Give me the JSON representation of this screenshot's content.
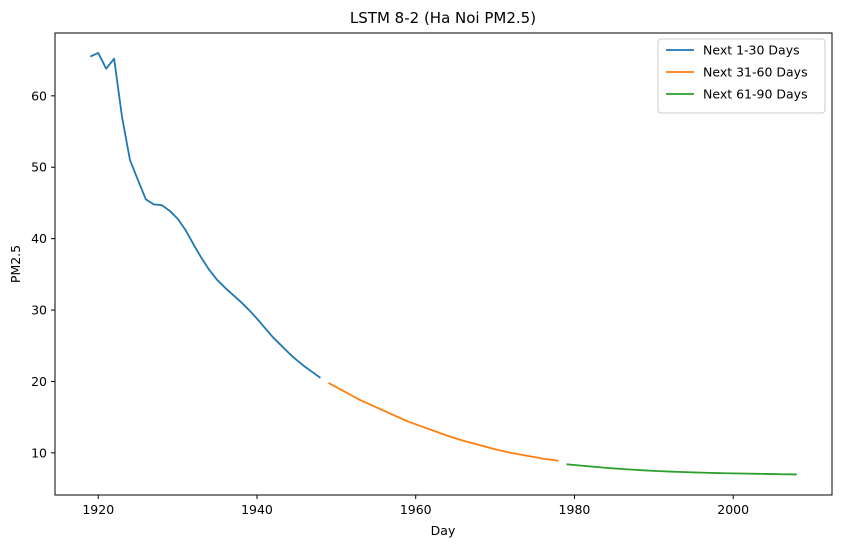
{
  "chart_data": {
    "type": "line",
    "title": "LSTM 8-2 (Ha Noi PM2.5)",
    "xlabel": "Day",
    "ylabel": "PM2.5",
    "xlim": [
      1914.55,
      2012.45
    ],
    "ylim": [
      4.1,
      68.8
    ],
    "x_ticks": [
      1920,
      1940,
      1960,
      1980,
      2000
    ],
    "y_ticks": [
      10,
      20,
      30,
      40,
      50,
      60
    ],
    "grid": false,
    "legend_position": "top-right",
    "series": [
      {
        "name": "Next 1-30 Days",
        "color": "#1f77b4",
        "x": [
          1919,
          1920,
          1921,
          1922,
          1923,
          1924,
          1925,
          1926,
          1927,
          1928,
          1929,
          1930,
          1931,
          1932,
          1933,
          1934,
          1935,
          1936,
          1937,
          1938,
          1939,
          1940,
          1941,
          1942,
          1943,
          1944,
          1945,
          1946,
          1947,
          1948
        ],
        "y": [
          65.5,
          66.0,
          63.8,
          65.2,
          57.0,
          51.0,
          48.2,
          45.5,
          44.8,
          44.7,
          43.9,
          42.8,
          41.2,
          39.2,
          37.3,
          35.6,
          34.2,
          33.1,
          32.1,
          31.1,
          30.0,
          28.8,
          27.5,
          26.2,
          25.1,
          24.0,
          23.0,
          22.1,
          21.3,
          20.5
        ]
      },
      {
        "name": "Next 31-60 Days",
        "color": "#ff7f0e",
        "x": [
          1949,
          1950,
          1951,
          1952,
          1953,
          1954,
          1955,
          1956,
          1957,
          1958,
          1959,
          1960,
          1961,
          1962,
          1963,
          1964,
          1965,
          1966,
          1967,
          1968,
          1969,
          1970,
          1971,
          1972,
          1973,
          1974,
          1975,
          1976,
          1977,
          1978
        ],
        "y": [
          19.8,
          19.2,
          18.6,
          18.0,
          17.4,
          16.9,
          16.4,
          15.9,
          15.4,
          14.9,
          14.4,
          14.0,
          13.6,
          13.2,
          12.8,
          12.4,
          12.05,
          11.7,
          11.4,
          11.1,
          10.8,
          10.5,
          10.25,
          10.0,
          9.8,
          9.6,
          9.4,
          9.2,
          9.05,
          8.9
        ]
      },
      {
        "name": "Next 61-90 Days",
        "color": "#2ca02c",
        "x": [
          1979,
          1980,
          1981,
          1982,
          1983,
          1984,
          1985,
          1986,
          1987,
          1988,
          1989,
          1990,
          1991,
          1992,
          1993,
          1994,
          1995,
          1996,
          1997,
          1998,
          1999,
          2000,
          2001,
          2002,
          2003,
          2004,
          2005,
          2006,
          2007,
          2008
        ],
        "y": [
          8.4,
          8.3,
          8.2,
          8.1,
          8.0,
          7.9,
          7.82,
          7.74,
          7.67,
          7.6,
          7.54,
          7.48,
          7.43,
          7.38,
          7.34,
          7.3,
          7.26,
          7.23,
          7.2,
          7.17,
          7.15,
          7.13,
          7.11,
          7.09,
          7.07,
          7.05,
          7.03,
          7.01,
          7.0,
          6.98
        ]
      }
    ]
  }
}
